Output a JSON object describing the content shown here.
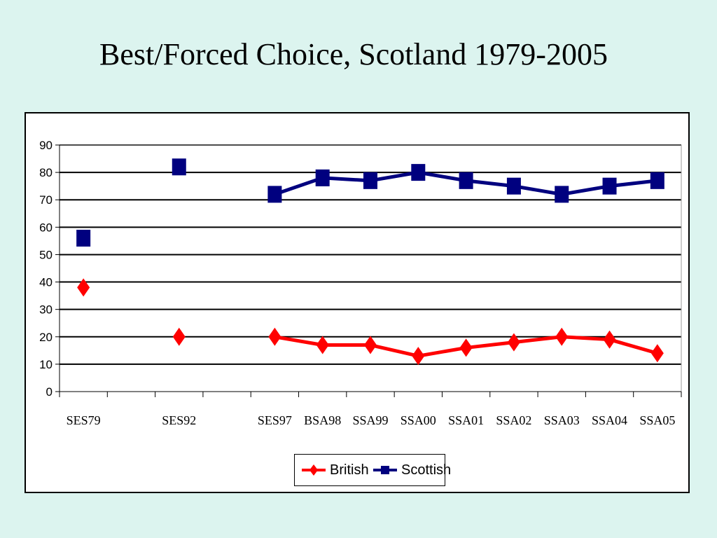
{
  "title": "Best/Forced Choice, Scotland 1979-2005",
  "chart_data": {
    "type": "line",
    "title": "",
    "xlabel": "",
    "ylabel": "",
    "categories": [
      "SES79",
      "",
      "SES92",
      "",
      "SES97",
      "BSA98",
      "SSA99",
      "SSA00",
      "SSA01",
      "SSA02",
      "SSA03",
      "SSA04",
      "SSA05"
    ],
    "ylim": [
      0,
      90
    ],
    "yticks": [
      0,
      10,
      20,
      30,
      40,
      50,
      60,
      70,
      80,
      90
    ],
    "grid": true,
    "legend_position": "bottom",
    "series": [
      {
        "name": "British",
        "color": "#ff0000",
        "marker": "diamond",
        "values": [
          38,
          null,
          20,
          null,
          20,
          17,
          17,
          13,
          16,
          18,
          20,
          19,
          14
        ]
      },
      {
        "name": "Scottish",
        "color": "#00007f",
        "marker": "square",
        "values": [
          56,
          null,
          82,
          null,
          72,
          78,
          77,
          80,
          77,
          75,
          72,
          75,
          77
        ]
      }
    ]
  }
}
